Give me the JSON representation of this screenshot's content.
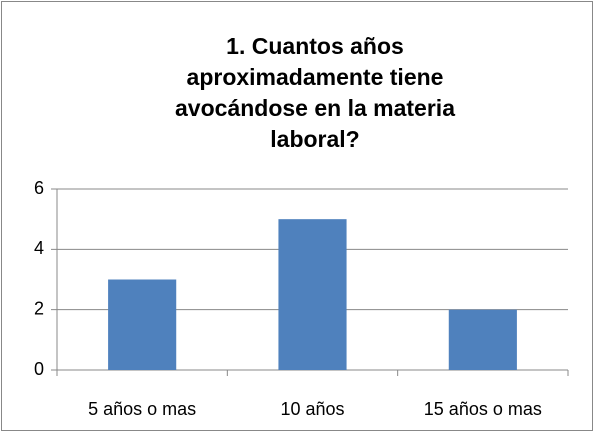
{
  "chart_data": {
    "type": "bar",
    "title": "1. Cuantos años aproximadamente tiene avocándose en la materia laboral?",
    "categories": [
      "5 años o mas",
      "10 años",
      "15 años o mas"
    ],
    "values": [
      3,
      5,
      2
    ],
    "color": "#4f81bd",
    "ylim": [
      0,
      6
    ],
    "yticks": [
      0,
      2,
      4,
      6
    ],
    "grid": true
  }
}
